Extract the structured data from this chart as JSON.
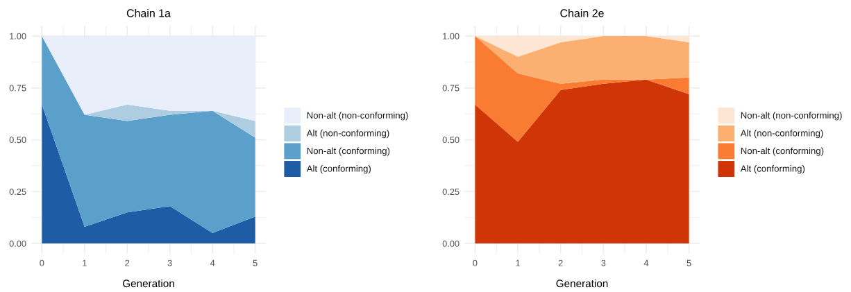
{
  "chart_data": [
    {
      "type": "area",
      "stacked": true,
      "title": "Chain 1a",
      "xlabel": "Generation",
      "x": [
        0,
        1,
        2,
        3,
        4,
        5
      ],
      "series": [
        {
          "name": "Alt (conforming)",
          "color": "#1f5ca6",
          "values": [
            0.67,
            0.08,
            0.15,
            0.18,
            0.05,
            0.13
          ]
        },
        {
          "name": "Non-alt (conforming)",
          "color": "#5b9fcb",
          "values": [
            0.33,
            0.54,
            0.44,
            0.44,
            0.59,
            0.38
          ]
        },
        {
          "name": "Alt (non-conforming)",
          "color": "#afcde1",
          "values": [
            0,
            0,
            0.08,
            0.02,
            0,
            0.08
          ]
        },
        {
          "name": "Non-alt (non-conforming)",
          "color": "#e8eefa",
          "values": [
            0,
            0.38,
            0.33,
            0.36,
            0.36,
            0.41
          ]
        }
      ],
      "xlim": [
        -0.25,
        5.25
      ],
      "ylim": [
        -0.05,
        1.05
      ],
      "xticks": [
        0,
        {
          "value": 0.5,
          "label": null
        },
        1,
        {
          "value": 1.5,
          "label": null
        },
        2,
        {
          "value": 2.5,
          "label": null
        },
        3,
        {
          "value": 3.5,
          "label": null
        },
        4,
        {
          "value": 4.5,
          "label": null
        },
        5
      ],
      "yticks": [
        {
          "value": 0,
          "label": "0.00"
        },
        {
          "value": 0.125,
          "label": null
        },
        {
          "value": 0.25,
          "label": "0.25"
        },
        {
          "value": 0.375,
          "label": null
        },
        {
          "value": 0.5,
          "label": "0.50"
        },
        {
          "value": 0.625,
          "label": null
        },
        {
          "value": 0.75,
          "label": "0.75"
        },
        {
          "value": 0.875,
          "label": null
        },
        {
          "value": 1,
          "label": "1.00"
        }
      ],
      "grid": true,
      "legend": "right"
    },
    {
      "type": "area",
      "stacked": true,
      "title": "Chain 2e",
      "xlabel": "Generation",
      "x": [
        0,
        1,
        2,
        3,
        4,
        5
      ],
      "series": [
        {
          "name": "Alt (conforming)",
          "color": "#cf3506",
          "values": [
            0.67,
            0.49,
            0.74,
            0.77,
            0.79,
            0.72
          ]
        },
        {
          "name": "Non-alt (conforming)",
          "color": "#fa7c32",
          "values": [
            0.33,
            0.33,
            0.03,
            0.02,
            0,
            0.08
          ]
        },
        {
          "name": "Alt (non-conforming)",
          "color": "#fbaf70",
          "values": [
            0,
            0.08,
            0.2,
            0.21,
            0.21,
            0.17
          ]
        },
        {
          "name": "Non-alt (non-conforming)",
          "color": "#fde6d3",
          "values": [
            0,
            0.1,
            0.03,
            0,
            0,
            0.03
          ]
        }
      ],
      "xlim": [
        -0.25,
        5.25
      ],
      "ylim": [
        -0.05,
        1.05
      ],
      "xticks": [
        0,
        {
          "value": 0.5,
          "label": null
        },
        1,
        {
          "value": 1.5,
          "label": null
        },
        2,
        {
          "value": 2.5,
          "label": null
        },
        3,
        {
          "value": 3.5,
          "label": null
        },
        4,
        {
          "value": 4.5,
          "label": null
        },
        5
      ],
      "yticks": [
        {
          "value": 0,
          "label": "0.00"
        },
        {
          "value": 0.125,
          "label": null
        },
        {
          "value": 0.25,
          "label": "0.25"
        },
        {
          "value": 0.375,
          "label": null
        },
        {
          "value": 0.5,
          "label": "0.50"
        },
        {
          "value": 0.625,
          "label": null
        },
        {
          "value": 0.75,
          "label": "0.75"
        },
        {
          "value": 0.875,
          "label": null
        },
        {
          "value": 1,
          "label": "1.00"
        }
      ],
      "grid": true,
      "legend": "right"
    }
  ]
}
